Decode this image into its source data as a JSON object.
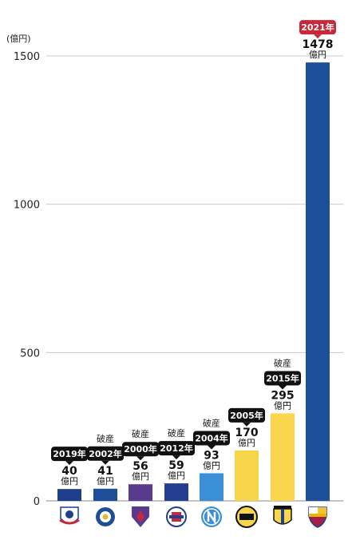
{
  "chart_data": {
    "type": "bar",
    "unit_label": "(億円)",
    "ylim": [
      0,
      1500
    ],
    "yticks": [
      0,
      500,
      1000,
      1500
    ],
    "grid": true,
    "value_unit": "億円",
    "bars": [
      {
        "value": 40,
        "value_label": "40",
        "year": "2019年",
        "note": "",
        "color": "#1f3f8a",
        "badge_color": "#111111",
        "icon": "bolton-wanderers-crest-icon"
      },
      {
        "value": 41,
        "value_label": "41",
        "year": "2002年",
        "note": "破産",
        "color": "#1f4e99",
        "badge_color": "#111111",
        "icon": "leicester-city-crest-icon"
      },
      {
        "value": 56,
        "value_label": "56",
        "year": "2000年",
        "note": "破産",
        "color": "#5a3a8f",
        "badge_color": "#111111",
        "icon": "fiorentina-crest-icon"
      },
      {
        "value": 59,
        "value_label": "59",
        "year": "2012年",
        "note": "破産",
        "color": "#243f8f",
        "badge_color": "#111111",
        "icon": "rangers-crest-icon"
      },
      {
        "value": 93,
        "value_label": "93",
        "year": "2004年",
        "note": "破産",
        "color": "#3b8fd6",
        "badge_color": "#111111",
        "icon": "napoli-crest-icon"
      },
      {
        "value": 170,
        "value_label": "170",
        "year": "2005年",
        "note": "",
        "color": "#f7d54a",
        "badge_color": "#111111",
        "icon": "borussia-dortmund-crest-icon"
      },
      {
        "value": 295,
        "value_label": "295",
        "year": "2015年",
        "note": "破産",
        "color": "#f9d64c",
        "badge_color": "#111111",
        "icon": "parma-crest-icon"
      },
      {
        "value": 1478,
        "value_label": "1478",
        "year": "2021年",
        "note": "",
        "color": "#1e4f9a",
        "badge_color": "#c8283a",
        "icon": "fc-barcelona-crest-icon"
      }
    ]
  }
}
